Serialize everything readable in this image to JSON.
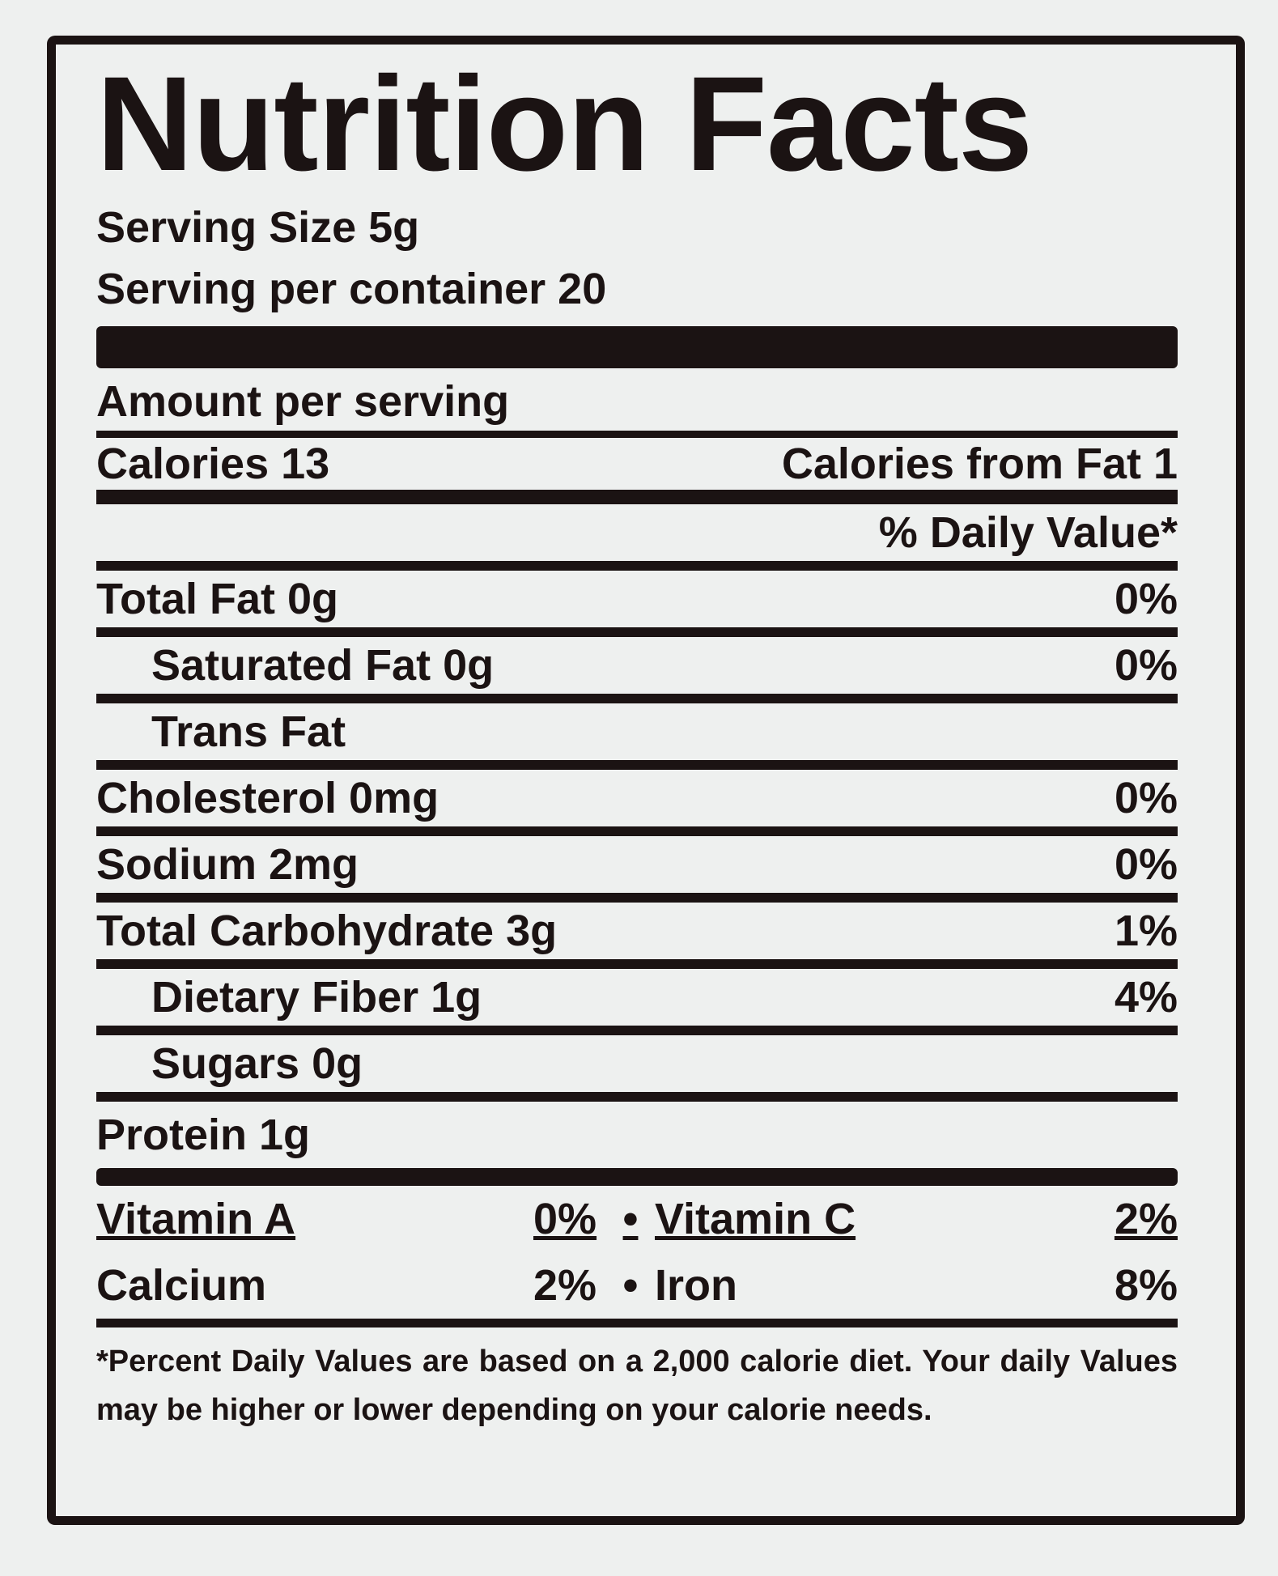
{
  "title": "Nutrition Facts",
  "serving_size": "Serving Size 5g",
  "servings_per_container": "Serving per container 20",
  "amount_per_serving": "Amount per serving",
  "calories": "Calories 13",
  "calories_from_fat": "Calories from Fat 1",
  "daily_value_header": "% Daily Value*",
  "nutrients": [
    {
      "name": "Total Fat 0g",
      "daily_value": "0%",
      "sub": [
        {
          "name": "Saturated Fat 0g",
          "daily_value": "0%"
        },
        {
          "name": "Trans Fat"
        }
      ]
    },
    {
      "name": "Cholesterol 0mg",
      "daily_value": "0%"
    },
    {
      "name": "Sodium 2mg",
      "daily_value": "0%"
    },
    {
      "name": "Total Carbohydrate 3g",
      "daily_value": "1%",
      "sub": [
        {
          "name": "Dietary Fiber 1g",
          "daily_value": "4%"
        },
        {
          "name": "Sugars 0g"
        }
      ]
    },
    {
      "name": "Protein 1g"
    }
  ],
  "vitamins": [
    [
      {
        "name": "Vitamin A",
        "value": "0%"
      },
      {
        "name": "Vitamin C",
        "value": "2%"
      }
    ],
    [
      {
        "name": "Calcium",
        "value": "2%"
      },
      {
        "name": "Iron",
        "value": "8%"
      }
    ]
  ],
  "footnote": "*Percent Daily Values are based on a 2,000 calorie diet. Your daily Values may be higher or lower depending on your calorie needs."
}
